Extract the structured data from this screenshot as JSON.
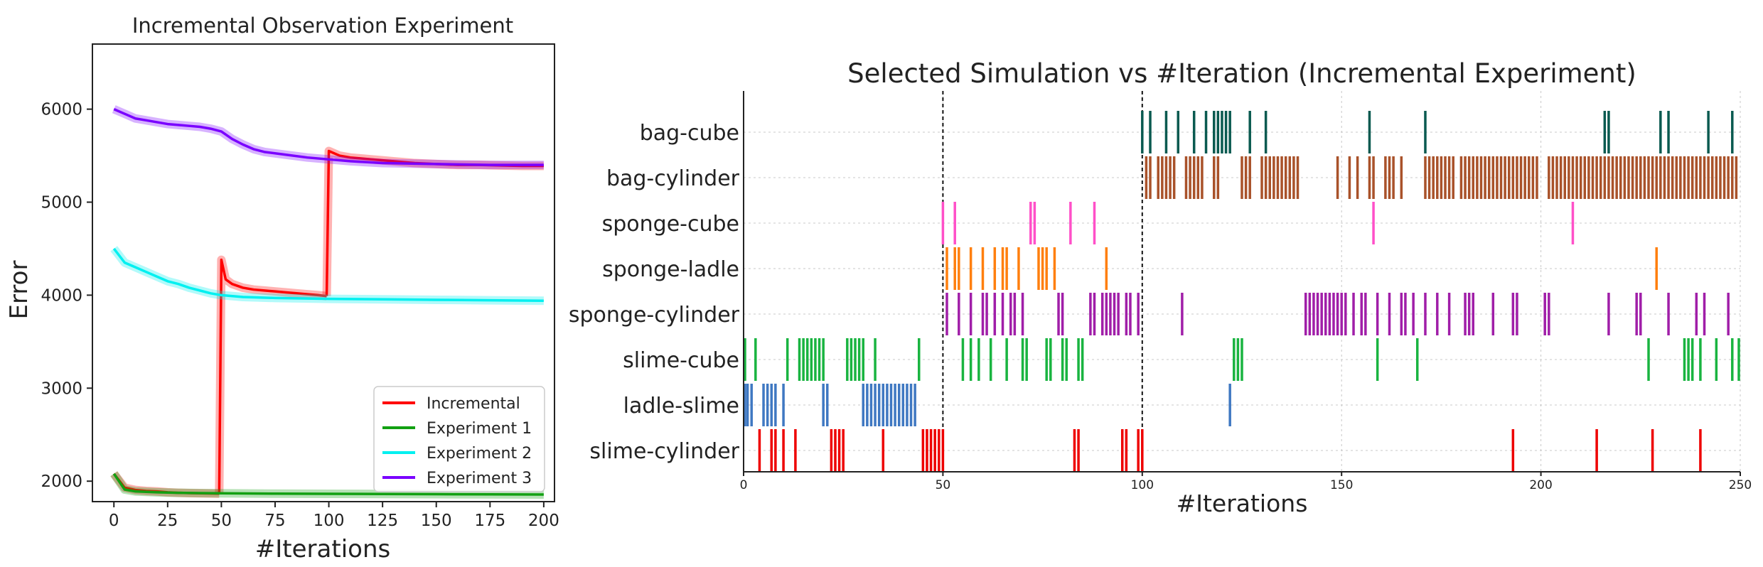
{
  "chart_data": [
    {
      "type": "line",
      "title": "Incremental Observation Experiment",
      "xlabel": "#Iterations",
      "ylabel": "Error",
      "xlim": [
        -10,
        205
      ],
      "ylim": [
        1780,
        6700
      ],
      "xticks": [
        0,
        25,
        50,
        75,
        100,
        125,
        150,
        175,
        200
      ],
      "yticks": [
        2000,
        3000,
        4000,
        5000,
        6000
      ],
      "grid": false,
      "legend_position": "lower-right",
      "series": [
        {
          "name": "Incremental",
          "color": "#ff0000",
          "segments": [
            {
              "x": [
                0,
                5,
                10,
                15,
                20,
                25,
                30,
                35,
                40,
                45,
                49
              ],
              "y": [
                2080,
                1930,
                1905,
                1895,
                1890,
                1880,
                1875,
                1872,
                1870,
                1868,
                1866
              ]
            },
            {
              "x": [
                49,
                50,
                52,
                55,
                60,
                65,
                70,
                75,
                80,
                85,
                90,
                95,
                99
              ],
              "y": [
                1866,
                4380,
                4170,
                4120,
                4080,
                4060,
                4050,
                4040,
                4030,
                4020,
                4010,
                4000,
                3990
              ]
            },
            {
              "x": [
                99,
                100,
                105,
                110,
                115,
                120,
                125,
                130,
                135,
                140,
                150,
                160,
                170,
                180,
                190,
                200
              ],
              "y": [
                3990,
                5550,
                5500,
                5480,
                5470,
                5460,
                5450,
                5440,
                5430,
                5420,
                5410,
                5400,
                5400,
                5395,
                5390,
                5390
              ]
            }
          ]
        },
        {
          "name": "Experiment 1",
          "color": "#12a012",
          "segments": [
            {
              "x": [
                0,
                5,
                10,
                20,
                30,
                40,
                50,
                75,
                100,
                125,
                150,
                175,
                200
              ],
              "y": [
                2080,
                1910,
                1890,
                1880,
                1875,
                1872,
                1870,
                1866,
                1864,
                1862,
                1860,
                1858,
                1856
              ]
            }
          ]
        },
        {
          "name": "Experiment 2",
          "color": "#00f0f0",
          "segments": [
            {
              "x": [
                0,
                5,
                10,
                15,
                20,
                25,
                30,
                35,
                40,
                45,
                50,
                60,
                75,
                100,
                125,
                150,
                175,
                200
              ],
              "y": [
                4500,
                4350,
                4300,
                4250,
                4200,
                4150,
                4120,
                4080,
                4050,
                4020,
                4000,
                3980,
                3970,
                3960,
                3955,
                3950,
                3945,
                3940
              ]
            }
          ]
        },
        {
          "name": "Experiment 3",
          "color": "#7a00ff",
          "segments": [
            {
              "x": [
                0,
                5,
                10,
                15,
                20,
                25,
                30,
                35,
                40,
                45,
                50,
                55,
                60,
                65,
                70,
                80,
                90,
                100,
                110,
                125,
                150,
                175,
                200
              ],
              "y": [
                6000,
                5950,
                5900,
                5880,
                5860,
                5840,
                5830,
                5820,
                5810,
                5790,
                5760,
                5680,
                5620,
                5570,
                5540,
                5510,
                5480,
                5460,
                5440,
                5420,
                5410,
                5400,
                5400
              ]
            }
          ]
        }
      ]
    },
    {
      "type": "event",
      "title": "Selected Simulation vs #Iteration (Incremental Experiment)",
      "xlabel": "#Iterations",
      "xlim": [
        0,
        250
      ],
      "xticks": [
        0,
        50,
        100,
        150,
        200,
        250
      ],
      "vlines": [
        50,
        100
      ],
      "grid": true,
      "rows": [
        {
          "name": "bag-cube",
          "color": "#0a5a50",
          "iterations": [
            100,
            102,
            106,
            109,
            113,
            116,
            118,
            119,
            120,
            121,
            122,
            127,
            131,
            157,
            171,
            216,
            217,
            230,
            232,
            242,
            248
          ]
        },
        {
          "name": "bag-cylinder",
          "color": "#a9522a",
          "iterations": [
            101,
            102,
            104,
            105,
            106,
            107,
            108,
            111,
            112,
            113,
            114,
            115,
            118,
            119,
            125,
            126,
            127,
            130,
            131,
            132,
            133,
            134,
            135,
            136,
            137,
            138,
            139,
            149,
            152,
            154,
            157,
            158,
            161,
            162,
            163,
            165,
            171,
            172,
            173,
            174,
            175,
            176,
            177,
            178,
            180,
            181,
            182,
            183,
            184,
            185,
            186,
            187,
            188,
            189,
            190,
            191,
            192,
            193,
            194,
            195,
            196,
            197,
            198,
            199,
            202,
            203,
            204,
            205,
            206,
            207,
            208,
            209,
            210,
            211,
            212,
            213,
            214,
            215,
            216,
            217,
            218,
            219,
            220,
            221,
            222,
            223,
            224,
            225,
            226,
            227,
            228,
            229,
            230,
            231,
            232,
            233,
            234,
            235,
            236,
            237,
            238,
            239,
            240,
            241,
            242,
            243,
            244,
            245,
            246,
            247,
            248,
            249
          ]
        },
        {
          "name": "sponge-cube",
          "color": "#ff50c8",
          "iterations": [
            50,
            53,
            72,
            73,
            82,
            88,
            158,
            208
          ]
        },
        {
          "name": "sponge-ladle",
          "color": "#ff7f0e",
          "iterations": [
            51,
            53,
            54,
            57,
            60,
            63,
            65,
            66,
            69,
            74,
            75,
            76,
            78,
            91,
            229
          ]
        },
        {
          "name": "sponge-cylinder",
          "color": "#a01ea8",
          "iterations": [
            51,
            54,
            57,
            60,
            61,
            63,
            65,
            67,
            68,
            70,
            79,
            80,
            87,
            88,
            90,
            91,
            92,
            93,
            94,
            96,
            97,
            99,
            110,
            141,
            142,
            143,
            144,
            145,
            146,
            147,
            148,
            149,
            150,
            151,
            153,
            155,
            156,
            159,
            162,
            165,
            166,
            168,
            171,
            174,
            177,
            181,
            182,
            183,
            188,
            193,
            194,
            201,
            202,
            217,
            224,
            225,
            232,
            239,
            241,
            247
          ]
        },
        {
          "name": "slime-cube",
          "color": "#19b440",
          "iterations": [
            0,
            3,
            11,
            14,
            15,
            16,
            17,
            18,
            19,
            20,
            26,
            27,
            28,
            29,
            30,
            33,
            44,
            55,
            57,
            59,
            62,
            66,
            70,
            71,
            76,
            77,
            80,
            81,
            84,
            85,
            123,
            124,
            125,
            159,
            169,
            227,
            236,
            237,
            238,
            240,
            244,
            248,
            250
          ]
        },
        {
          "name": "ladle-slime",
          "color": "#3f78c2",
          "iterations": [
            0,
            1,
            2,
            5,
            6,
            7,
            8,
            10,
            20,
            21,
            30,
            31,
            32,
            33,
            34,
            35,
            36,
            37,
            38,
            39,
            40,
            41,
            42,
            43,
            122
          ]
        },
        {
          "name": "slime-cylinder",
          "color": "#ee0000",
          "iterations": [
            4,
            7,
            8,
            10,
            13,
            22,
            23,
            24,
            25,
            35,
            45,
            46,
            47,
            48,
            49,
            50,
            83,
            84,
            95,
            96,
            99,
            100,
            193,
            214,
            228,
            240
          ]
        }
      ]
    }
  ]
}
